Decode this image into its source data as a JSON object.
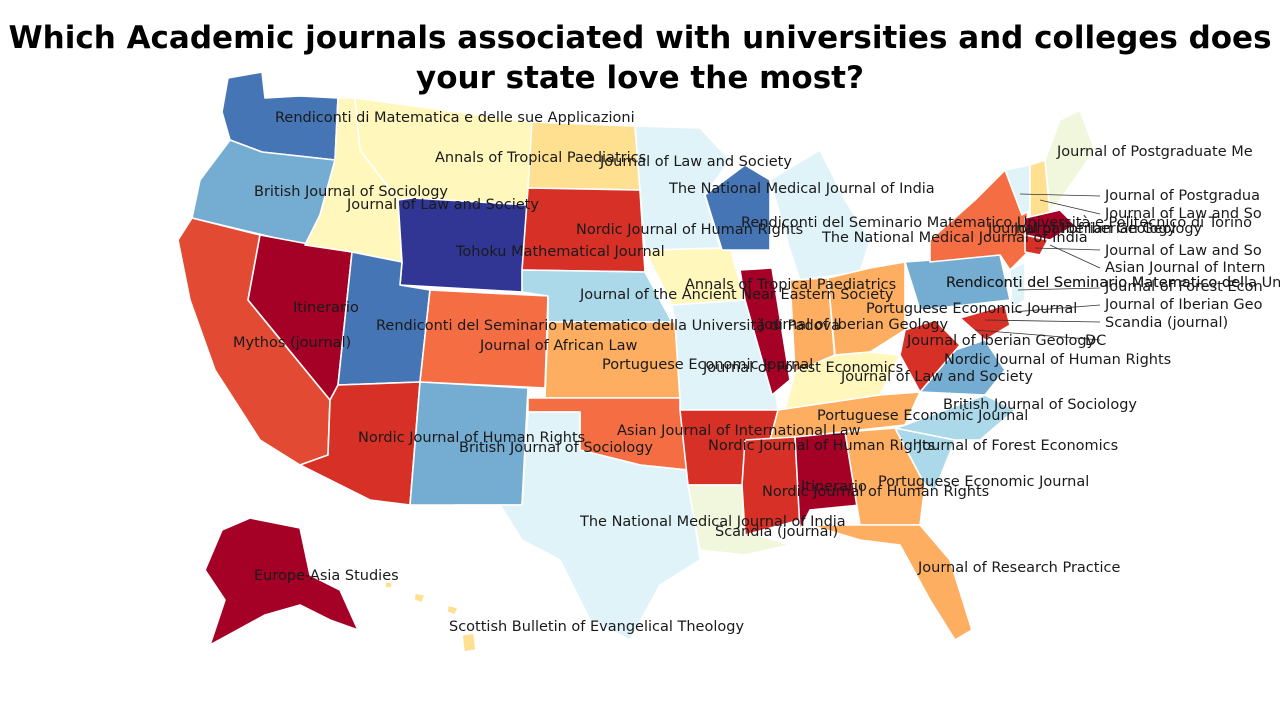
{
  "title_line1": "Which Academic journals associated with universities and colleges does",
  "title_line2": "your state love the most?",
  "labels": {
    "wa": "Rendiconti di Matematica e delle sue Applicazioni",
    "or": "British Journal of Sociology",
    "ca": "Mythos (journal)",
    "nv": "Itinerario",
    "id": "Journal of Law and Society",
    "mt": "Annals of Tropical Paediatrics",
    "nd": "Journal of Law and Society",
    "wy": "Tohoku Mathematical Journal",
    "sd": "Nordic Journal of Human Rights",
    "mn": "The National Medical Journal of India",
    "ut": "Rendiconti del Seminario Matematico della Università di Padova",
    "co": "Journal of African Law",
    "ne": "Journal of the Ancient Near Eastern Society",
    "ia": "Annals of Tropical Paediatrics",
    "wi": "Rendiconti del Seminario Matematico Università e Politecnico di Torino",
    "mi": "The National Medical Journal of India",
    "il": "Journal of Iberian Geology",
    "in": "Portuguese Economic Journal",
    "oh": "Journal of Iberian Geology",
    "pa": "Rendiconti del Seminario Matematico della Università di Padova",
    "ny": "Journal of Iberian Geology",
    "az": "Nordic Journal of Human Rights",
    "nm": "British Journal of Sociology",
    "ks": "Portuguese Economic Journal",
    "mo": "Journal of Forest Economics",
    "ok": "Asian Journal of International Law",
    "ar": "Nordic Journal of Human Rights",
    "tx": "The National Medical Journal of India",
    "la": "Scandia (journal)",
    "ms": "Itinerario",
    "al": "Nordic Journal of Human Rights",
    "ky": "Journal of Law and Society",
    "tn": "Portuguese Economic Journal",
    "wv": "Nordic Journal of Human Rights",
    "va": "British Journal of Sociology",
    "nc": "Journal of Forest Economics",
    "sc": "Portuguese Economic Journal",
    "ga": "Itinerario",
    "fl": "Journal of Research Practice",
    "ak": "Europe-Asia Studies",
    "hi": "Scottish Bulletin of Evangelical Theology",
    "me": "Journal of Postgraduate Me",
    "vt": "Journal of Postgradua",
    "nh": "Journal of Law and So",
    "ma_top": "Journal of Iberian Geology",
    "ct": "Journal of Law and So",
    "ri": "Asian Journal of Intern",
    "nj": "Rendiconti del Seminario Matematico del",
    "nj2": "Journal of Forest Econ",
    "de": "Journal of Iberian Geo",
    "md": "Scandia (journal)",
    "dc": "DC"
  },
  "colors": {
    "dark_red": "#a50026",
    "red": "#d73027",
    "red_orange": "#e34a33",
    "orange": "#f46d43",
    "light_orange": "#fdae61",
    "pale_yellow": "#fee090",
    "cream": "#fff7bc",
    "pale_green": "#f1f7dc",
    "pale_blue": "#e0f3f8",
    "light_blue": "#abd9e9",
    "sky_blue": "#74add1",
    "blue": "#4575b4",
    "dark_blue": "#313695"
  }
}
